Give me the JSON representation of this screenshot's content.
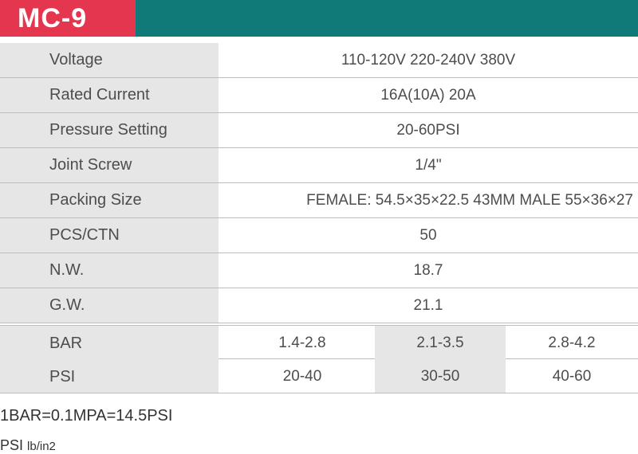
{
  "header": {
    "model": "MC-9"
  },
  "specs": [
    {
      "label": "Voltage",
      "value": "110-120V   220-240V   380V"
    },
    {
      "label": "Rated Current",
      "value": "16A(10A)   20A"
    },
    {
      "label": "Pressure Setting",
      "value": "20-60PSI"
    },
    {
      "label": "Joint Screw",
      "value": "1/4\""
    },
    {
      "label": "Packing Size",
      "value": "FEMALE: 54.5×35×22.5  43MM MALE 55×36×27"
    },
    {
      "label": "PCS/CTN",
      "value": "50"
    },
    {
      "label": "N.W.",
      "value": "18.7"
    },
    {
      "label": "G.W.",
      "value": "21.1"
    }
  ],
  "pressure": {
    "bar": {
      "label": "BAR",
      "values": [
        "1.4-2.8",
        "2.1-3.5",
        "2.8-4.2"
      ]
    },
    "psi": {
      "label": "PSI",
      "values": [
        "20-40",
        "30-50",
        "40-60"
      ]
    }
  },
  "notes": {
    "conversion": "1BAR=0.1MPA=14.5PSI",
    "unit_main": "PSI",
    "unit_sub": "lb/in2"
  },
  "colors": {
    "teal": "#0f7a77",
    "red": "#e5364f",
    "gray": "#e6e6e6"
  }
}
